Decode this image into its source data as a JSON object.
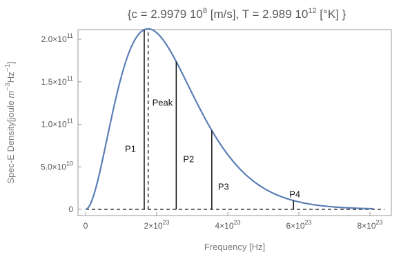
{
  "chart_data": {
    "type": "line",
    "title": "{c = 2.9979 10^8 [m/s], T = 2.989 10^12 [°K] }",
    "title_parts": {
      "open": "{c = 2.9979 10",
      "c_exp": "8",
      "mid": " [m/s], T = 2.989 10",
      "t_exp": "12",
      "close": " [°K] }"
    },
    "constants": {
      "c": 299790000.0,
      "T": 2989000000000.0
    },
    "xlabel": "Frequency [Hz]",
    "ylabel": "Spec-E Density[joule m^-3Hz^-1]",
    "ylabel_parts": {
      "a": "Spec-E Density[joule ",
      "m": "m",
      "m_exp": "−3",
      "hz": "Hz",
      "hz_exp": "−1",
      "close": "]"
    },
    "xlim": [
      0,
      8.1e+23
    ],
    "ylim": [
      0,
      200000000000.0
    ],
    "x_ticks": [
      {
        "value": 0,
        "label": "0",
        "mantissa": "0",
        "exp": ""
      },
      {
        "value": 2e+23,
        "label": "2×10^23",
        "mantissa": "2×10",
        "exp": "23"
      },
      {
        "value": 4e+23,
        "label": "4×10^23",
        "mantissa": "4×10",
        "exp": "23"
      },
      {
        "value": 6e+23,
        "label": "6×10^23",
        "mantissa": "6×10",
        "exp": "23"
      },
      {
        "value": 8e+23,
        "label": "8×10^23",
        "mantissa": "8×10",
        "exp": "23"
      }
    ],
    "y_ticks": [
      {
        "value": 0,
        "label": "0",
        "mantissa": "0",
        "exp": ""
      },
      {
        "value": 50000000000.0,
        "label": "5.0×10^10",
        "mantissa": "5.0×10",
        "exp": "10"
      },
      {
        "value": 100000000000.0,
        "label": "1.0×10^11",
        "mantissa": "1.0×10",
        "exp": "11"
      },
      {
        "value": 150000000000.0,
        "label": "1.5×10^11",
        "mantissa": "1.5×10",
        "exp": "11"
      },
      {
        "value": 200000000000.0,
        "label": "2.0×10^11",
        "mantissa": "2.0×10",
        "exp": "11"
      }
    ],
    "series": [
      {
        "color": "#5b7fb5",
        "x_max": 8.1e+23
      }
    ],
    "peak": {
      "label": "Peak",
      "x": 1.76e+23,
      "y": 190000000000.0
    },
    "markers": [
      {
        "label": "P1",
        "x": 1.65e+23,
        "y": 191000000000.0
      },
      {
        "label": "P2",
        "x": 2.55e+23,
        "y": 153000000000.0
      },
      {
        "label": "P3",
        "x": 3.55e+23,
        "y": 77000000000.0
      },
      {
        "label": "P4",
        "x": 5.85e+23,
        "y": 7000000000.0
      }
    ],
    "baseline": {
      "style": "dashed",
      "y": 0
    },
    "grid": false,
    "legend": "none"
  }
}
